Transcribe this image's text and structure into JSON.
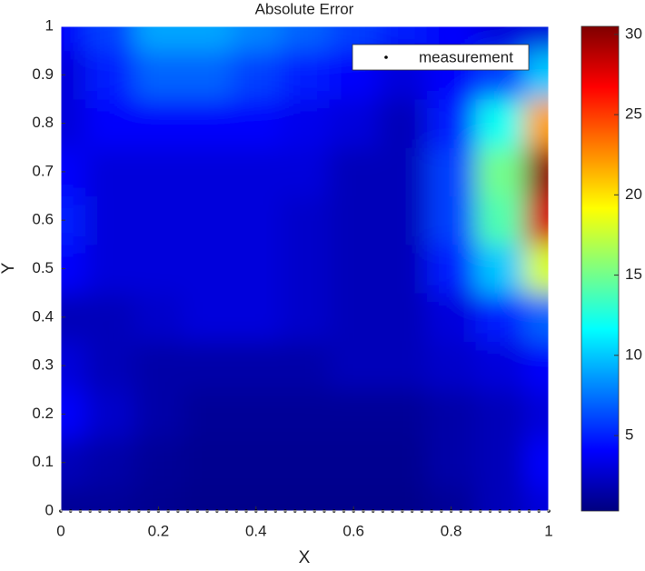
{
  "chart_data": {
    "type": "contourf",
    "title": "Absolute Error",
    "xlabel": "X",
    "ylabel": "Y",
    "colormap": "jet",
    "x": [
      0,
      0.1,
      0.2,
      0.3,
      0.4,
      0.5,
      0.6,
      0.7,
      0.8,
      0.9,
      1
    ],
    "y": [
      0,
      0.1,
      0.2,
      0.3,
      0.4,
      0.5,
      0.6,
      0.7,
      0.8,
      0.9,
      1
    ],
    "z": [
      [
        1,
        1,
        0.8,
        0.6,
        0.6,
        0.6,
        0.6,
        0.6,
        1,
        2,
        3
      ],
      [
        2,
        1.5,
        1,
        0.8,
        0.8,
        0.8,
        0.8,
        0.8,
        1.5,
        2,
        4
      ],
      [
        4,
        2.5,
        1.5,
        1,
        1,
        1,
        1,
        1,
        1.5,
        2,
        3
      ],
      [
        3,
        2,
        1.5,
        1.5,
        1.5,
        1.5,
        2,
        2,
        2.5,
        3,
        4
      ],
      [
        2,
        2,
        2.5,
        3,
        3,
        2.5,
        2,
        2,
        3,
        5,
        7
      ],
      [
        4,
        3,
        3,
        3,
        3,
        2.5,
        2,
        2,
        5,
        10,
        18
      ],
      [
        5,
        3,
        3,
        3,
        3,
        2.5,
        2,
        2,
        6,
        14,
        28
      ],
      [
        4,
        3,
        3,
        3,
        3,
        3,
        2,
        2,
        6,
        15,
        30
      ],
      [
        3,
        4,
        4,
        4,
        4,
        3.5,
        3,
        2,
        5,
        12,
        22
      ],
      [
        3,
        5,
        7,
        7,
        6,
        5,
        4,
        3,
        4,
        6,
        10
      ],
      [
        4,
        6,
        9,
        9,
        8,
        7,
        6,
        5,
        4,
        3,
        3
      ]
    ],
    "series": [
      {
        "name": "measurement",
        "color": "#000000",
        "x": [
          0,
          0.02,
          0.04,
          0.06,
          0.08,
          0.1,
          0.12,
          0.14,
          0.16,
          0.18,
          0.2,
          0.22,
          0.24,
          0.26,
          0.28,
          0.3,
          0.32,
          0.34,
          0.36,
          0.38,
          0.4,
          0.42,
          0.44,
          0.46,
          0.48,
          0.5,
          0.52,
          0.54,
          0.56,
          0.58,
          0.6,
          0.62,
          0.64,
          0.66,
          0.68,
          0.7,
          0.72,
          0.74,
          0.76,
          0.78,
          0.8,
          0.82,
          0.84,
          0.86,
          0.88,
          0.9,
          0.92,
          0.94,
          0.96,
          0.98,
          1
        ],
        "values": [
          0,
          0,
          0,
          0,
          0,
          0,
          0,
          0,
          0,
          0,
          0,
          0,
          0,
          0,
          0,
          0,
          0,
          0,
          0,
          0,
          0,
          0,
          0,
          0,
          0,
          0,
          0,
          0,
          0,
          0,
          0,
          0,
          0,
          0,
          0,
          0,
          0,
          0,
          0,
          0,
          0,
          0,
          0,
          0,
          0,
          0,
          0,
          0,
          0,
          0,
          0
        ]
      }
    ],
    "xlim": [
      0,
      1
    ],
    "ylim": [
      0,
      1
    ],
    "clim": [
      0.3,
      30.5
    ],
    "xticks": [
      0,
      0.2,
      0.4,
      0.6,
      0.8,
      1
    ],
    "yticks": [
      0,
      0.1,
      0.2,
      0.3,
      0.4,
      0.5,
      0.6,
      0.7,
      0.8,
      0.9,
      1
    ],
    "cticks": [
      5,
      10,
      15,
      20,
      25,
      30
    ],
    "legend": "northeast"
  }
}
